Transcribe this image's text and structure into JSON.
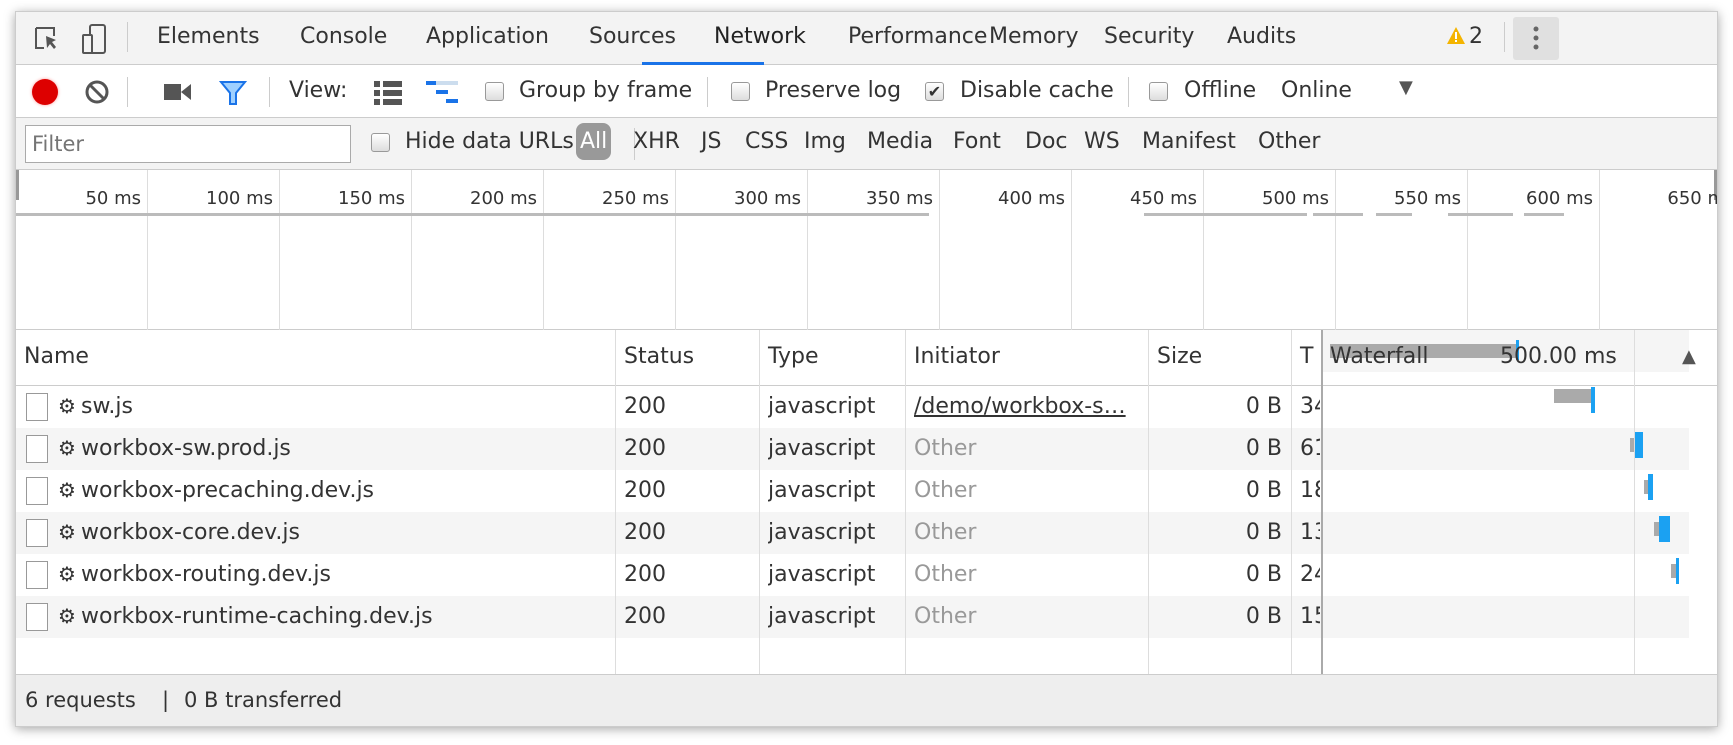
{
  "tabs": [
    {
      "label": "Elements"
    },
    {
      "label": "Console"
    },
    {
      "label": "Application"
    },
    {
      "label": "Sources"
    },
    {
      "label": "Network"
    },
    {
      "label": "Performance"
    },
    {
      "label": "Memory"
    },
    {
      "label": "Security"
    },
    {
      "label": "Audits"
    }
  ],
  "active_tab": "Network",
  "warnings": {
    "count": "2",
    "color": "#f4b400"
  },
  "toolbar": {
    "view_label": "View:",
    "group_by_frame": "Group by frame",
    "preserve_log": "Preserve log",
    "disable_cache": "Disable cache",
    "disable_cache_checked": true,
    "offline": "Offline",
    "throttle": "Online"
  },
  "filter": {
    "placeholder": "Filter",
    "hide_data_urls": "Hide data URLs",
    "types": [
      "All",
      "XHR",
      "JS",
      "CSS",
      "Img",
      "Media",
      "Font",
      "Doc",
      "WS",
      "Manifest",
      "Other"
    ],
    "selected": "All"
  },
  "timeline_ticks": [
    "50 ms",
    "100 ms",
    "150 ms",
    "200 ms",
    "250 ms",
    "300 ms",
    "350 ms",
    "400 ms",
    "450 ms",
    "500 ms",
    "550 ms",
    "600 ms",
    "650 m"
  ],
  "columns": {
    "name": "Name",
    "status": "Status",
    "type": "Type",
    "initiator": "Initiator",
    "size": "Size",
    "time": "T",
    "waterfall": "Waterfall",
    "waterfall_time": "500.00 ms"
  },
  "rows": [
    {
      "name": "sw.js",
      "status": "200",
      "type": "javascript",
      "initiator": "/demo/workbox-s…",
      "initiator_link": true,
      "size": "0 B",
      "time": "34"
    },
    {
      "name": "workbox-sw.prod.js",
      "status": "200",
      "type": "javascript",
      "initiator": "Other",
      "size": "0 B",
      "time": "61"
    },
    {
      "name": "workbox-precaching.dev.js",
      "status": "200",
      "type": "javascript",
      "initiator": "Other",
      "size": "0 B",
      "time": "18"
    },
    {
      "name": "workbox-core.dev.js",
      "status": "200",
      "type": "javascript",
      "initiator": "Other",
      "size": "0 B",
      "time": "13"
    },
    {
      "name": "workbox-routing.dev.js",
      "status": "200",
      "type": "javascript",
      "initiator": "Other",
      "size": "0 B",
      "time": "24"
    },
    {
      "name": "workbox-runtime-caching.dev.js",
      "status": "200",
      "type": "javascript",
      "initiator": "Other",
      "size": "0 B",
      "time": "15"
    }
  ],
  "footer": {
    "requests": "6 requests",
    "separator": "|",
    "transferred": "0 B transferred"
  },
  "colors": {
    "accent": "#1a73e8",
    "record": "#d00",
    "waterfall_bar": "#1ba1f2",
    "waiting": "#aaa"
  }
}
